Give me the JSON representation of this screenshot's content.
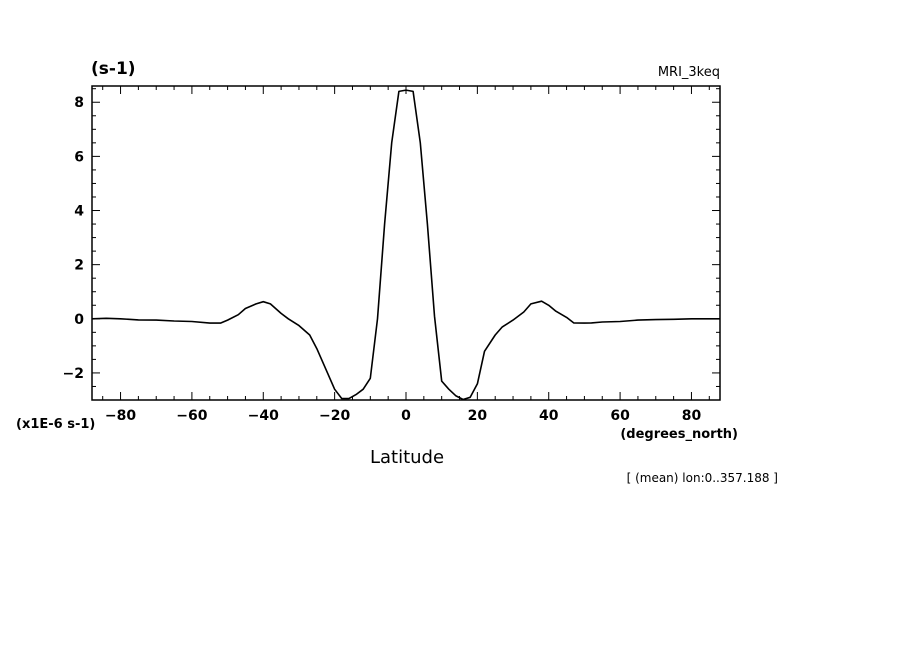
{
  "chart_data": {
    "type": "line",
    "title_left": "(s-1)",
    "title_right": "MRI_3keq",
    "xlabel": "Latitude",
    "x_units": "(degrees_north)",
    "y_scale_label": "(x1E-6 s-1)",
    "annotation": "[ (mean) lon:0..357.188 ]",
    "xlim": [
      -88,
      88
    ],
    "ylim": [
      -3,
      8.6
    ],
    "xticks": [
      -80,
      -60,
      -40,
      -20,
      0,
      20,
      40,
      60,
      80
    ],
    "yticks": [
      -2,
      0,
      2,
      4,
      6,
      8
    ],
    "grid": false,
    "series": [
      {
        "x": [
          -88,
          -84,
          -80,
          -75,
          -70,
          -65,
          -60,
          -55,
          -52,
          -50,
          -47,
          -45,
          -42,
          -40,
          -38,
          -35,
          -33,
          -30,
          -27,
          -25,
          -22,
          -20,
          -18,
          -16,
          -14,
          -12,
          -10,
          -8,
          -6,
          -4,
          -2,
          0,
          2,
          4,
          6,
          8,
          10,
          12,
          14,
          16,
          18,
          20,
          22,
          25,
          27,
          30,
          33,
          35,
          38,
          40,
          42,
          45,
          47,
          50,
          52,
          55,
          60,
          65,
          70,
          75,
          80,
          84,
          88
        ],
        "y": [
          0,
          0.02,
          0,
          -0.04,
          -0.05,
          -0.08,
          -0.1,
          -0.16,
          -0.16,
          -0.05,
          0.15,
          0.38,
          0.55,
          0.63,
          0.55,
          0.2,
          0,
          -0.25,
          -0.6,
          -1.1,
          -2.0,
          -2.6,
          -2.95,
          -2.95,
          -2.8,
          -2.6,
          -2.2,
          0,
          3.5,
          6.5,
          8.4,
          8.45,
          8.4,
          6.5,
          3.5,
          0.1,
          -2.3,
          -2.6,
          -2.85,
          -2.98,
          -2.9,
          -2.4,
          -1.2,
          -0.6,
          -0.3,
          -0.05,
          0.25,
          0.55,
          0.65,
          0.5,
          0.28,
          0.05,
          -0.15,
          -0.16,
          -0.15,
          -0.12,
          -0.1,
          -0.05,
          -0.03,
          -0.02,
          0,
          0,
          0
        ]
      }
    ]
  }
}
